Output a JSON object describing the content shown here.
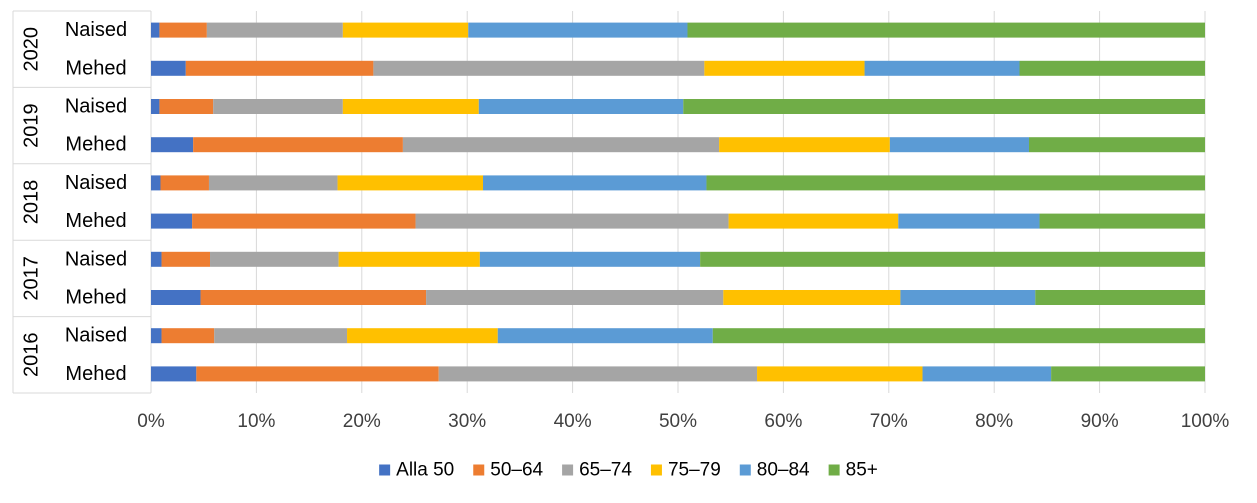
{
  "chart_data": {
    "type": "bar",
    "orientation": "horizontal",
    "stacked": "percent",
    "title": "",
    "xlabel": "",
    "ylabel": "",
    "xlim": [
      0,
      100
    ],
    "x_ticks": [
      "0%",
      "10%",
      "20%",
      "30%",
      "40%",
      "50%",
      "60%",
      "70%",
      "80%",
      "90%",
      "100%"
    ],
    "grid": "vertical",
    "legend_position": "bottom",
    "groups": [
      {
        "year": "2020",
        "categories": [
          "Naised",
          "Mehed"
        ]
      },
      {
        "year": "2019",
        "categories": [
          "Naised",
          "Mehed"
        ]
      },
      {
        "year": "2018",
        "categories": [
          "Naised",
          "Mehed"
        ]
      },
      {
        "year": "2017",
        "categories": [
          "Naised",
          "Mehed"
        ]
      },
      {
        "year": "2016",
        "categories": [
          "Naised",
          "Mehed"
        ]
      }
    ],
    "series": [
      {
        "name": "Alla 50",
        "color": "#4472C4",
        "values": [
          0.8,
          3.3,
          0.8,
          4.0,
          0.9,
          3.9,
          1.0,
          4.7,
          1.0,
          4.3
        ]
      },
      {
        "name": "50–64",
        "color": "#ED7D31",
        "values": [
          4.5,
          17.8,
          5.1,
          19.9,
          4.6,
          21.2,
          4.6,
          21.4,
          5.0,
          23.0
        ]
      },
      {
        "name": "65–74",
        "color": "#A5A5A5",
        "values": [
          12.9,
          31.4,
          12.3,
          30.0,
          12.2,
          29.7,
          12.2,
          28.2,
          12.6,
          30.2
        ]
      },
      {
        "name": "75–79",
        "color": "#FFC000",
        "values": [
          11.9,
          15.2,
          12.9,
          16.2,
          13.8,
          16.1,
          13.4,
          16.8,
          14.3,
          15.7
        ]
      },
      {
        "name": "80–84",
        "color": "#5B9BD5",
        "values": [
          20.8,
          14.7,
          19.4,
          13.2,
          21.2,
          13.4,
          20.9,
          12.8,
          20.4,
          12.2
        ]
      },
      {
        "name": "85+",
        "color": "#70AD47",
        "values": [
          49.1,
          17.6,
          49.5,
          16.7,
          47.3,
          15.7,
          47.9,
          16.1,
          46.7,
          14.6
        ]
      }
    ]
  }
}
